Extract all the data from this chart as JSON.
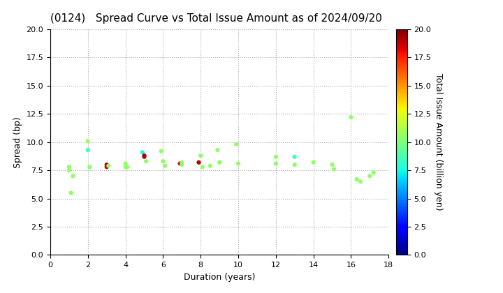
{
  "title": "(0124)   Spread Curve vs Total Issue Amount as of 2024/09/20",
  "xlabel": "Duration (years)",
  "ylabel": "Spread (bp)",
  "colorbar_label": "Total Issue Amount (billion yen)",
  "xlim": [
    0,
    18
  ],
  "ylim": [
    0,
    20
  ],
  "xticks": [
    0,
    2,
    4,
    6,
    8,
    10,
    12,
    14,
    16,
    18
  ],
  "yticks": [
    0.0,
    2.5,
    5.0,
    7.5,
    10.0,
    12.5,
    15.0,
    17.5,
    20.0
  ],
  "colormap": "jet",
  "cbar_vmin": 0.0,
  "cbar_vmax": 20.0,
  "cbar_ticks": [
    0.0,
    2.5,
    5.0,
    7.5,
    10.0,
    12.5,
    15.0,
    17.5,
    20.0
  ],
  "points": [
    [
      1.0,
      7.8,
      10.5
    ],
    [
      1.0,
      7.5,
      10.5
    ],
    [
      1.1,
      5.5,
      10.5
    ],
    [
      1.2,
      7.0,
      10.5
    ],
    [
      2.0,
      10.1,
      11.0
    ],
    [
      2.0,
      9.3,
      8.5
    ],
    [
      2.1,
      7.8,
      10.5
    ],
    [
      3.0,
      8.0,
      19.0
    ],
    [
      3.0,
      7.8,
      18.5
    ],
    [
      3.1,
      7.9,
      10.5
    ],
    [
      4.0,
      8.1,
      10.5
    ],
    [
      4.0,
      7.8,
      10.5
    ],
    [
      4.1,
      7.8,
      10.5
    ],
    [
      4.9,
      9.1,
      7.5
    ],
    [
      5.0,
      8.8,
      19.5
    ],
    [
      5.0,
      8.7,
      19.0
    ],
    [
      5.1,
      8.3,
      10.5
    ],
    [
      5.9,
      9.2,
      10.5
    ],
    [
      6.0,
      8.3,
      10.5
    ],
    [
      6.1,
      7.9,
      10.5
    ],
    [
      6.9,
      8.1,
      18.5
    ],
    [
      7.0,
      8.2,
      10.5
    ],
    [
      7.0,
      8.0,
      10.5
    ],
    [
      7.9,
      8.2,
      19.0
    ],
    [
      8.0,
      8.8,
      10.5
    ],
    [
      8.1,
      7.8,
      10.5
    ],
    [
      8.5,
      7.9,
      10.5
    ],
    [
      8.9,
      9.3,
      10.5
    ],
    [
      9.0,
      8.2,
      10.5
    ],
    [
      9.9,
      9.8,
      10.5
    ],
    [
      10.0,
      8.1,
      10.5
    ],
    [
      12.0,
      8.7,
      10.5
    ],
    [
      12.0,
      8.1,
      10.5
    ],
    [
      13.0,
      8.7,
      8.5
    ],
    [
      13.0,
      8.0,
      10.5
    ],
    [
      14.0,
      8.2,
      10.5
    ],
    [
      15.0,
      8.0,
      10.5
    ],
    [
      15.1,
      7.6,
      10.5
    ],
    [
      16.0,
      12.2,
      10.5
    ],
    [
      16.3,
      6.7,
      10.5
    ],
    [
      16.5,
      6.5,
      10.5
    ],
    [
      17.0,
      7.0,
      10.5
    ],
    [
      17.2,
      7.3,
      10.5
    ]
  ],
  "marker_size": 20,
  "background_color": "#ffffff",
  "grid_color": "#aaaaaa",
  "title_fontsize": 11,
  "label_fontsize": 9
}
